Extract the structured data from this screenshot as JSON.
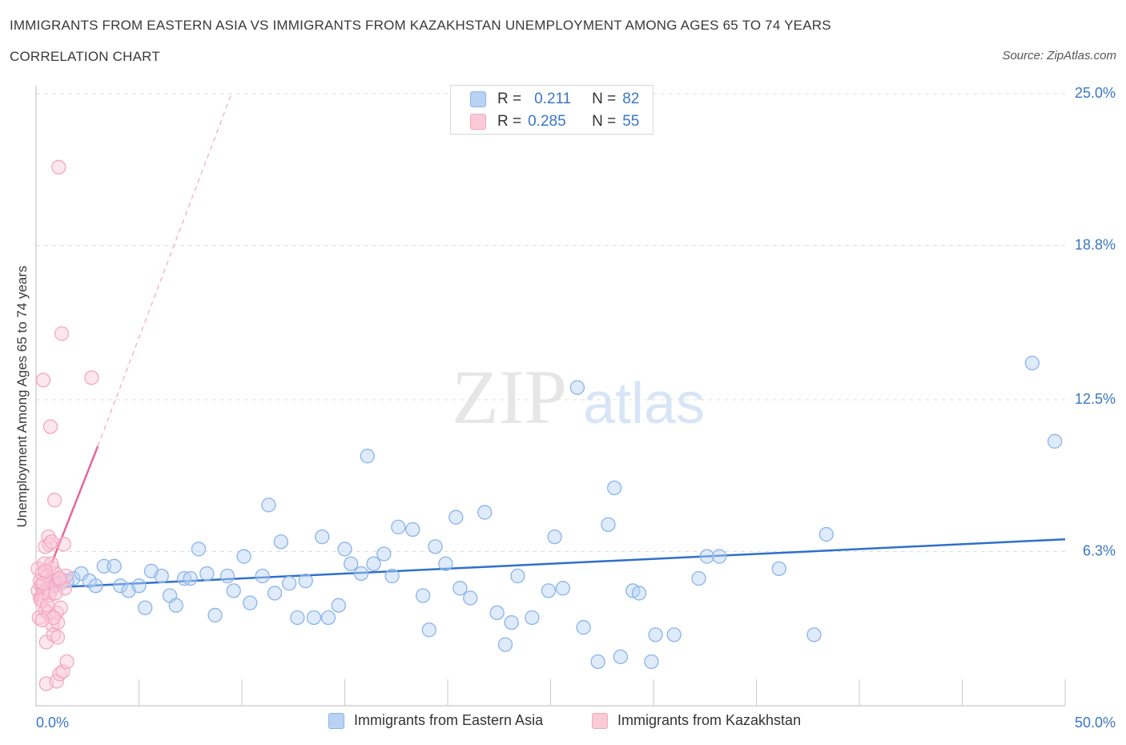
{
  "title": "IMMIGRANTS FROM EASTERN ASIA VS IMMIGRANTS FROM KAZAKHSTAN UNEMPLOYMENT AMONG AGES 65 TO 74 YEARS",
  "subtitle": "CORRELATION CHART",
  "source": "Source: ZipAtlas.com",
  "watermark": {
    "zip": "ZIP",
    "atlas": "atlas"
  },
  "legend": {
    "r_label": "R =",
    "n_label": "N =",
    "rows": [
      {
        "r": "0.211",
        "n": "82"
      },
      {
        "r": "0.285",
        "n": "55"
      }
    ]
  },
  "chart_data": {
    "type": "scatter",
    "title": "IMMIGRANTS FROM EASTERN ASIA VS IMMIGRANTS FROM KAZAKHSTAN UNEMPLOYMENT AMONG AGES 65 TO 74 YEARS",
    "xlabel": "",
    "ylabel": "Unemployment Among Ages 65 to 74 years",
    "xlim": [
      0,
      50
    ],
    "ylim": [
      0,
      25
    ],
    "x_tick_labels": [
      "0.0%",
      "50.0%"
    ],
    "y_tick_labels": [
      "6.3%",
      "12.5%",
      "18.8%",
      "25.0%"
    ],
    "y_tick_values": [
      6.3,
      12.5,
      18.8,
      25.0
    ],
    "series": [
      {
        "name": "Immigrants from Eastern Asia",
        "color": "#8ab4ea",
        "line_color": "#2f6fcb",
        "trend": {
          "x0": 0,
          "y0": 4.8,
          "x1": 50,
          "y1": 6.8
        },
        "points": [
          [
            0.8,
            5.1
          ],
          [
            1.0,
            5.0
          ],
          [
            1.3,
            5.1
          ],
          [
            1.8,
            5.2
          ],
          [
            2.2,
            5.4
          ],
          [
            2.6,
            5.1
          ],
          [
            2.9,
            4.9
          ],
          [
            3.3,
            5.7
          ],
          [
            3.8,
            5.7
          ],
          [
            4.1,
            4.9
          ],
          [
            4.5,
            4.7
          ],
          [
            5.0,
            4.9
          ],
          [
            5.3,
            4.0
          ],
          [
            5.6,
            5.5
          ],
          [
            6.1,
            5.3
          ],
          [
            6.5,
            4.5
          ],
          [
            6.8,
            4.1
          ],
          [
            7.2,
            5.2
          ],
          [
            7.5,
            5.2
          ],
          [
            7.9,
            6.4
          ],
          [
            8.3,
            5.4
          ],
          [
            8.7,
            3.7
          ],
          [
            9.3,
            5.3
          ],
          [
            9.6,
            4.7
          ],
          [
            10.1,
            6.1
          ],
          [
            10.4,
            4.2
          ],
          [
            11.0,
            5.3
          ],
          [
            11.3,
            8.2
          ],
          [
            11.6,
            4.6
          ],
          [
            11.9,
            6.7
          ],
          [
            12.3,
            5.0
          ],
          [
            12.7,
            3.6
          ],
          [
            13.1,
            5.1
          ],
          [
            13.5,
            3.6
          ],
          [
            13.9,
            6.9
          ],
          [
            14.2,
            3.6
          ],
          [
            14.7,
            4.1
          ],
          [
            15.0,
            6.4
          ],
          [
            15.3,
            5.8
          ],
          [
            15.8,
            5.4
          ],
          [
            16.1,
            10.2
          ],
          [
            16.4,
            5.8
          ],
          [
            16.9,
            6.2
          ],
          [
            17.3,
            5.3
          ],
          [
            17.6,
            7.3
          ],
          [
            18.3,
            7.2
          ],
          [
            18.8,
            4.5
          ],
          [
            19.1,
            3.1
          ],
          [
            19.4,
            6.5
          ],
          [
            19.9,
            5.8
          ],
          [
            20.4,
            7.7
          ],
          [
            20.6,
            4.8
          ],
          [
            21.1,
            4.4
          ],
          [
            21.8,
            7.9
          ],
          [
            22.4,
            3.8
          ],
          [
            22.8,
            2.5
          ],
          [
            23.1,
            3.4
          ],
          [
            23.4,
            5.3
          ],
          [
            24.1,
            3.6
          ],
          [
            24.9,
            4.7
          ],
          [
            25.2,
            6.9
          ],
          [
            25.6,
            4.8
          ],
          [
            26.3,
            13.0
          ],
          [
            26.6,
            3.2
          ],
          [
            27.3,
            1.8
          ],
          [
            27.8,
            7.4
          ],
          [
            28.1,
            8.9
          ],
          [
            28.4,
            2.0
          ],
          [
            29.0,
            4.7
          ],
          [
            29.3,
            4.6
          ],
          [
            29.9,
            1.8
          ],
          [
            30.1,
            2.9
          ],
          [
            31.0,
            2.9
          ],
          [
            32.2,
            5.2
          ],
          [
            32.6,
            6.1
          ],
          [
            33.2,
            6.1
          ],
          [
            36.1,
            5.6
          ],
          [
            37.8,
            2.9
          ],
          [
            38.4,
            7.0
          ],
          [
            48.4,
            14.0
          ],
          [
            49.5,
            10.8
          ],
          [
            1.5,
            5.1
          ]
        ]
      },
      {
        "name": "Immigrants from Kazakhstan",
        "color": "#f4a6bf",
        "line_color": "#e8659a",
        "trend": {
          "x0": 0.0,
          "y0": 4.2,
          "x1": 3.0,
          "y1": 10.6
        },
        "trend_extended": {
          "x0": 3.0,
          "y0": 10.6,
          "x1": 9.5,
          "y1": 25.0
        },
        "points": [
          [
            0.1,
            4.7
          ],
          [
            0.1,
            5.6
          ],
          [
            0.15,
            3.6
          ],
          [
            0.2,
            5.1
          ],
          [
            0.2,
            4.4
          ],
          [
            0.25,
            4.9
          ],
          [
            0.3,
            4.5
          ],
          [
            0.3,
            5.4
          ],
          [
            0.35,
            13.3
          ],
          [
            0.4,
            4.6
          ],
          [
            0.4,
            5.8
          ],
          [
            0.45,
            3.9
          ],
          [
            0.45,
            6.5
          ],
          [
            0.5,
            0.9
          ],
          [
            0.5,
            2.6
          ],
          [
            0.55,
            4.8
          ],
          [
            0.55,
            5.3
          ],
          [
            0.6,
            6.9
          ],
          [
            0.6,
            3.8
          ],
          [
            0.65,
            6.6
          ],
          [
            0.7,
            4.7
          ],
          [
            0.7,
            11.4
          ],
          [
            0.75,
            6.7
          ],
          [
            0.8,
            5.6
          ],
          [
            0.8,
            3.3
          ],
          [
            0.85,
            2.9
          ],
          [
            0.9,
            4.9
          ],
          [
            0.9,
            8.4
          ],
          [
            0.95,
            5.4
          ],
          [
            1.0,
            1.0
          ],
          [
            1.0,
            3.8
          ],
          [
            1.05,
            3.4
          ],
          [
            1.1,
            5.2
          ],
          [
            1.1,
            22.0
          ],
          [
            1.15,
            1.3
          ],
          [
            1.2,
            4.0
          ],
          [
            1.2,
            5.0
          ],
          [
            1.25,
            15.2
          ],
          [
            1.3,
            1.4
          ],
          [
            1.35,
            6.6
          ],
          [
            1.4,
            4.8
          ],
          [
            1.45,
            5.3
          ],
          [
            1.5,
            1.8
          ],
          [
            2.7,
            13.4
          ],
          [
            0.25,
            4.3
          ],
          [
            0.35,
            5.0
          ],
          [
            0.65,
            4.5
          ],
          [
            0.75,
            5.8
          ],
          [
            0.85,
            3.6
          ],
          [
            1.05,
            2.8
          ],
          [
            0.55,
            4.1
          ],
          [
            0.45,
            5.5
          ],
          [
            0.95,
            4.6
          ],
          [
            1.15,
            5.2
          ],
          [
            0.3,
            3.5
          ]
        ]
      }
    ]
  },
  "bottom_legend": [
    "Immigrants from Eastern Asia",
    "Immigrants from Kazakhstan"
  ]
}
